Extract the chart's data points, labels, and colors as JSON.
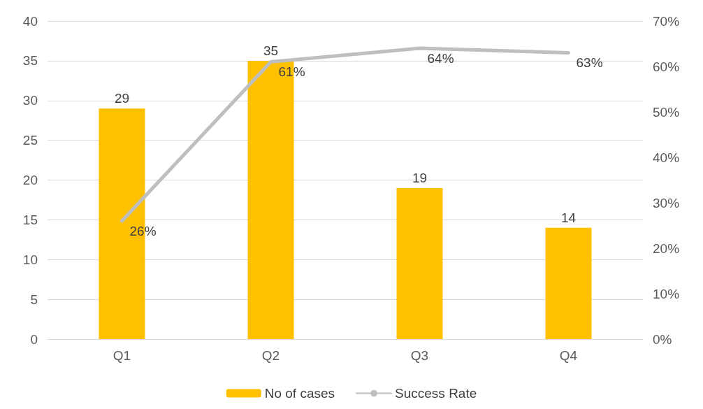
{
  "chart_data": {
    "type": "bar",
    "categories": [
      "Q1",
      "Q2",
      "Q3",
      "Q4"
    ],
    "series": [
      {
        "name": "No of cases",
        "color": "#ffc000",
        "values": [
          29,
          35,
          19,
          14
        ]
      },
      {
        "name": "Success Rate",
        "type": "line",
        "axis": "y2",
        "color": "#bfbfbf",
        "values": [
          26,
          61,
          64,
          63
        ],
        "value_labels": [
          "26%",
          "61%",
          "64%",
          "63%"
        ]
      }
    ],
    "ylim": [
      0,
      40
    ],
    "yticks": [
      0,
      5,
      10,
      15,
      20,
      25,
      30,
      35,
      40
    ],
    "y2lim": [
      0,
      70
    ],
    "y2ticks": [
      {
        "value": 0,
        "label": "0%"
      },
      {
        "value": 10,
        "label": "10%"
      },
      {
        "value": 20,
        "label": "20%"
      },
      {
        "value": 30,
        "label": "30%"
      },
      {
        "value": 40,
        "label": "40%"
      },
      {
        "value": 50,
        "label": "50%"
      },
      {
        "value": 60,
        "label": "60%"
      },
      {
        "value": 70,
        "label": "70%"
      }
    ],
    "data_labels": true,
    "grid": "y",
    "legend": "bottom",
    "marker": "none",
    "line_style": "solid"
  }
}
